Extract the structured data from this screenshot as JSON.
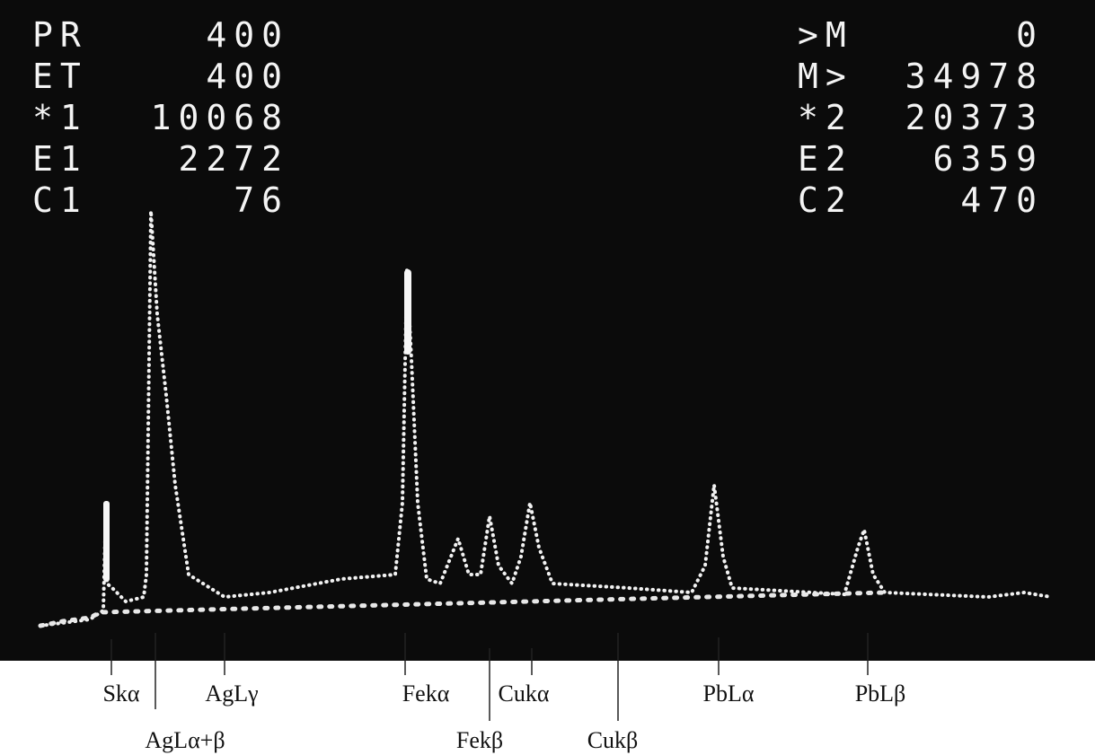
{
  "readout": {
    "left": [
      [
        "PR",
        "400"
      ],
      [
        "ET",
        "400"
      ],
      [
        "*1",
        "10068"
      ],
      [
        "E1",
        "2272"
      ],
      [
        "C1",
        "76"
      ]
    ],
    "right": [
      [
        ">M",
        "0"
      ],
      [
        "M>",
        "34978"
      ],
      [
        "*2",
        "20373"
      ],
      [
        "E2",
        "6359"
      ],
      [
        "C2",
        "470"
      ]
    ]
  },
  "peaks": [
    "Skα",
    "AgLα+β",
    "AgLγ",
    "Fekα",
    "Fekβ",
    "Cukα",
    "Cukβ",
    "PbLα",
    "PbLβ"
  ]
}
